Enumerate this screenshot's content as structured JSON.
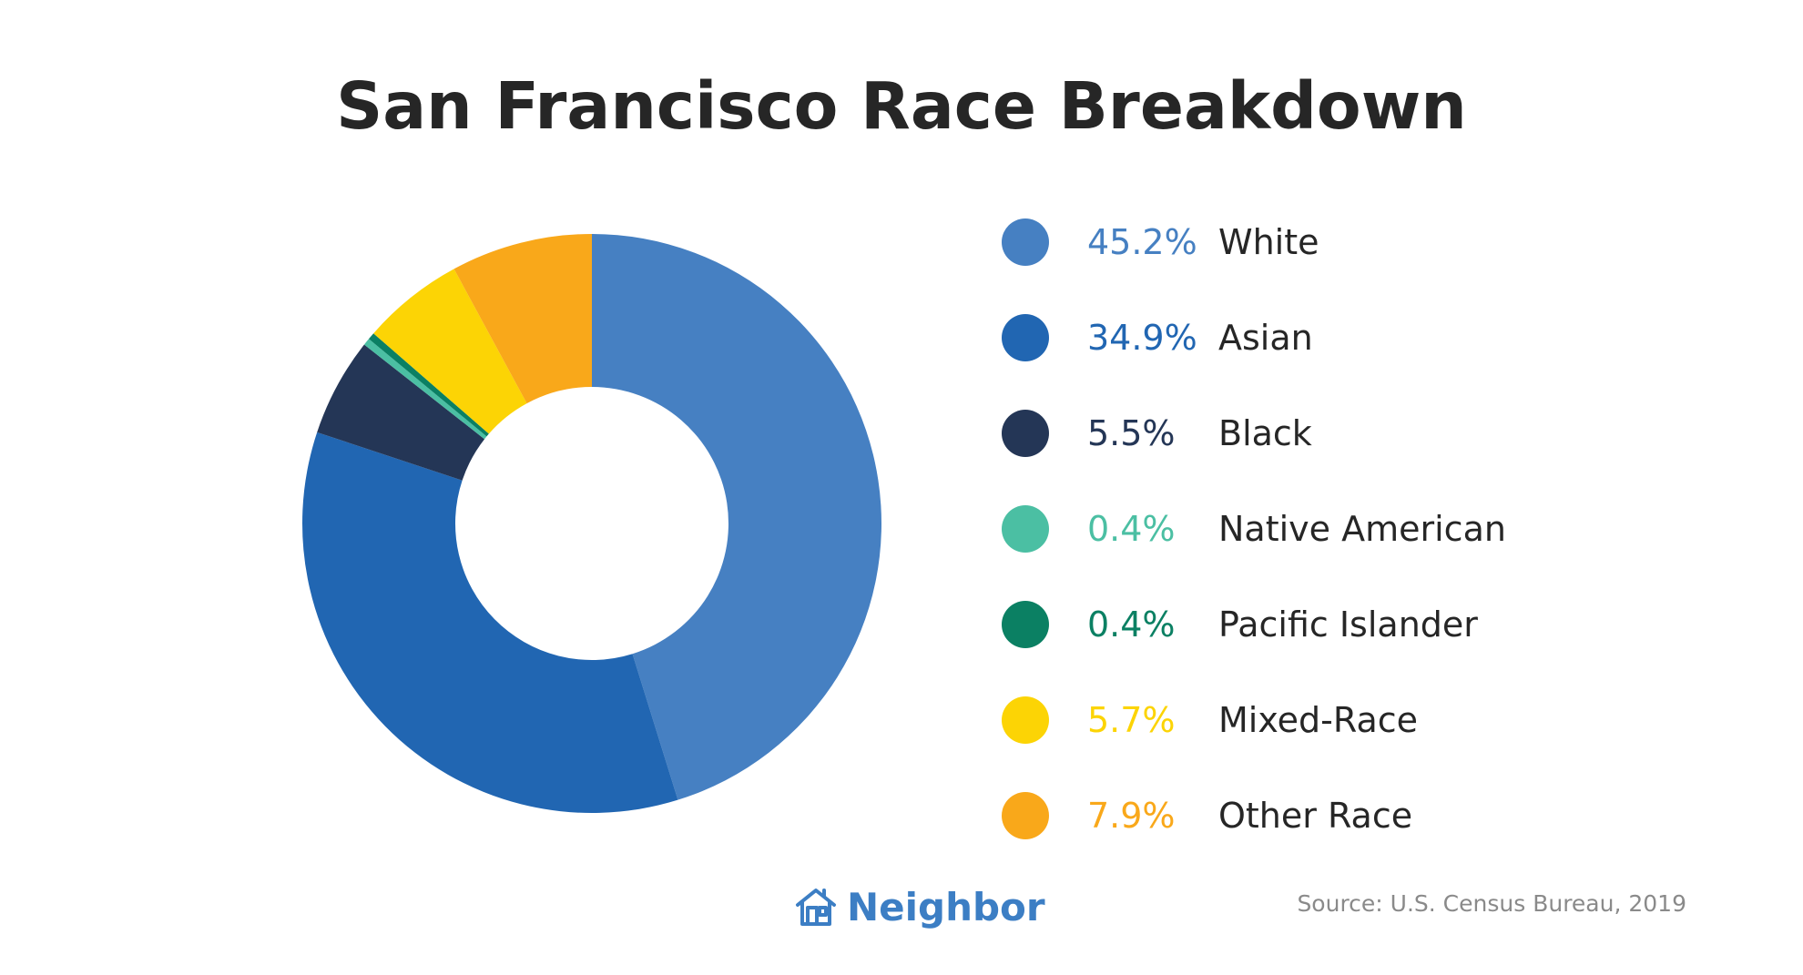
{
  "chart_data": {
    "type": "pie",
    "title": "San Francisco Race Breakdown",
    "categories": [
      "White",
      "Asian",
      "Black",
      "Native American",
      "Pacific Islander",
      "Mixed-Race",
      "Other Race"
    ],
    "values": [
      45.2,
      34.9,
      5.5,
      0.4,
      0.4,
      5.7,
      7.9
    ],
    "value_labels": [
      "45.2%",
      "34.9%",
      "5.5%",
      "0.4%",
      "0.4%",
      "5.7%",
      "7.9%"
    ],
    "colors": [
      "#4680c2",
      "#2166b2",
      "#243656",
      "#4bbfa3",
      "#0b8063",
      "#fcd405",
      "#f9a81a"
    ],
    "donut": true,
    "legend_position": "right"
  },
  "branding": {
    "name": "Neighbor",
    "icon": "house-icon",
    "color": "#3c7ec4"
  },
  "source": "Source: U.S. Census Bureau, 2019"
}
